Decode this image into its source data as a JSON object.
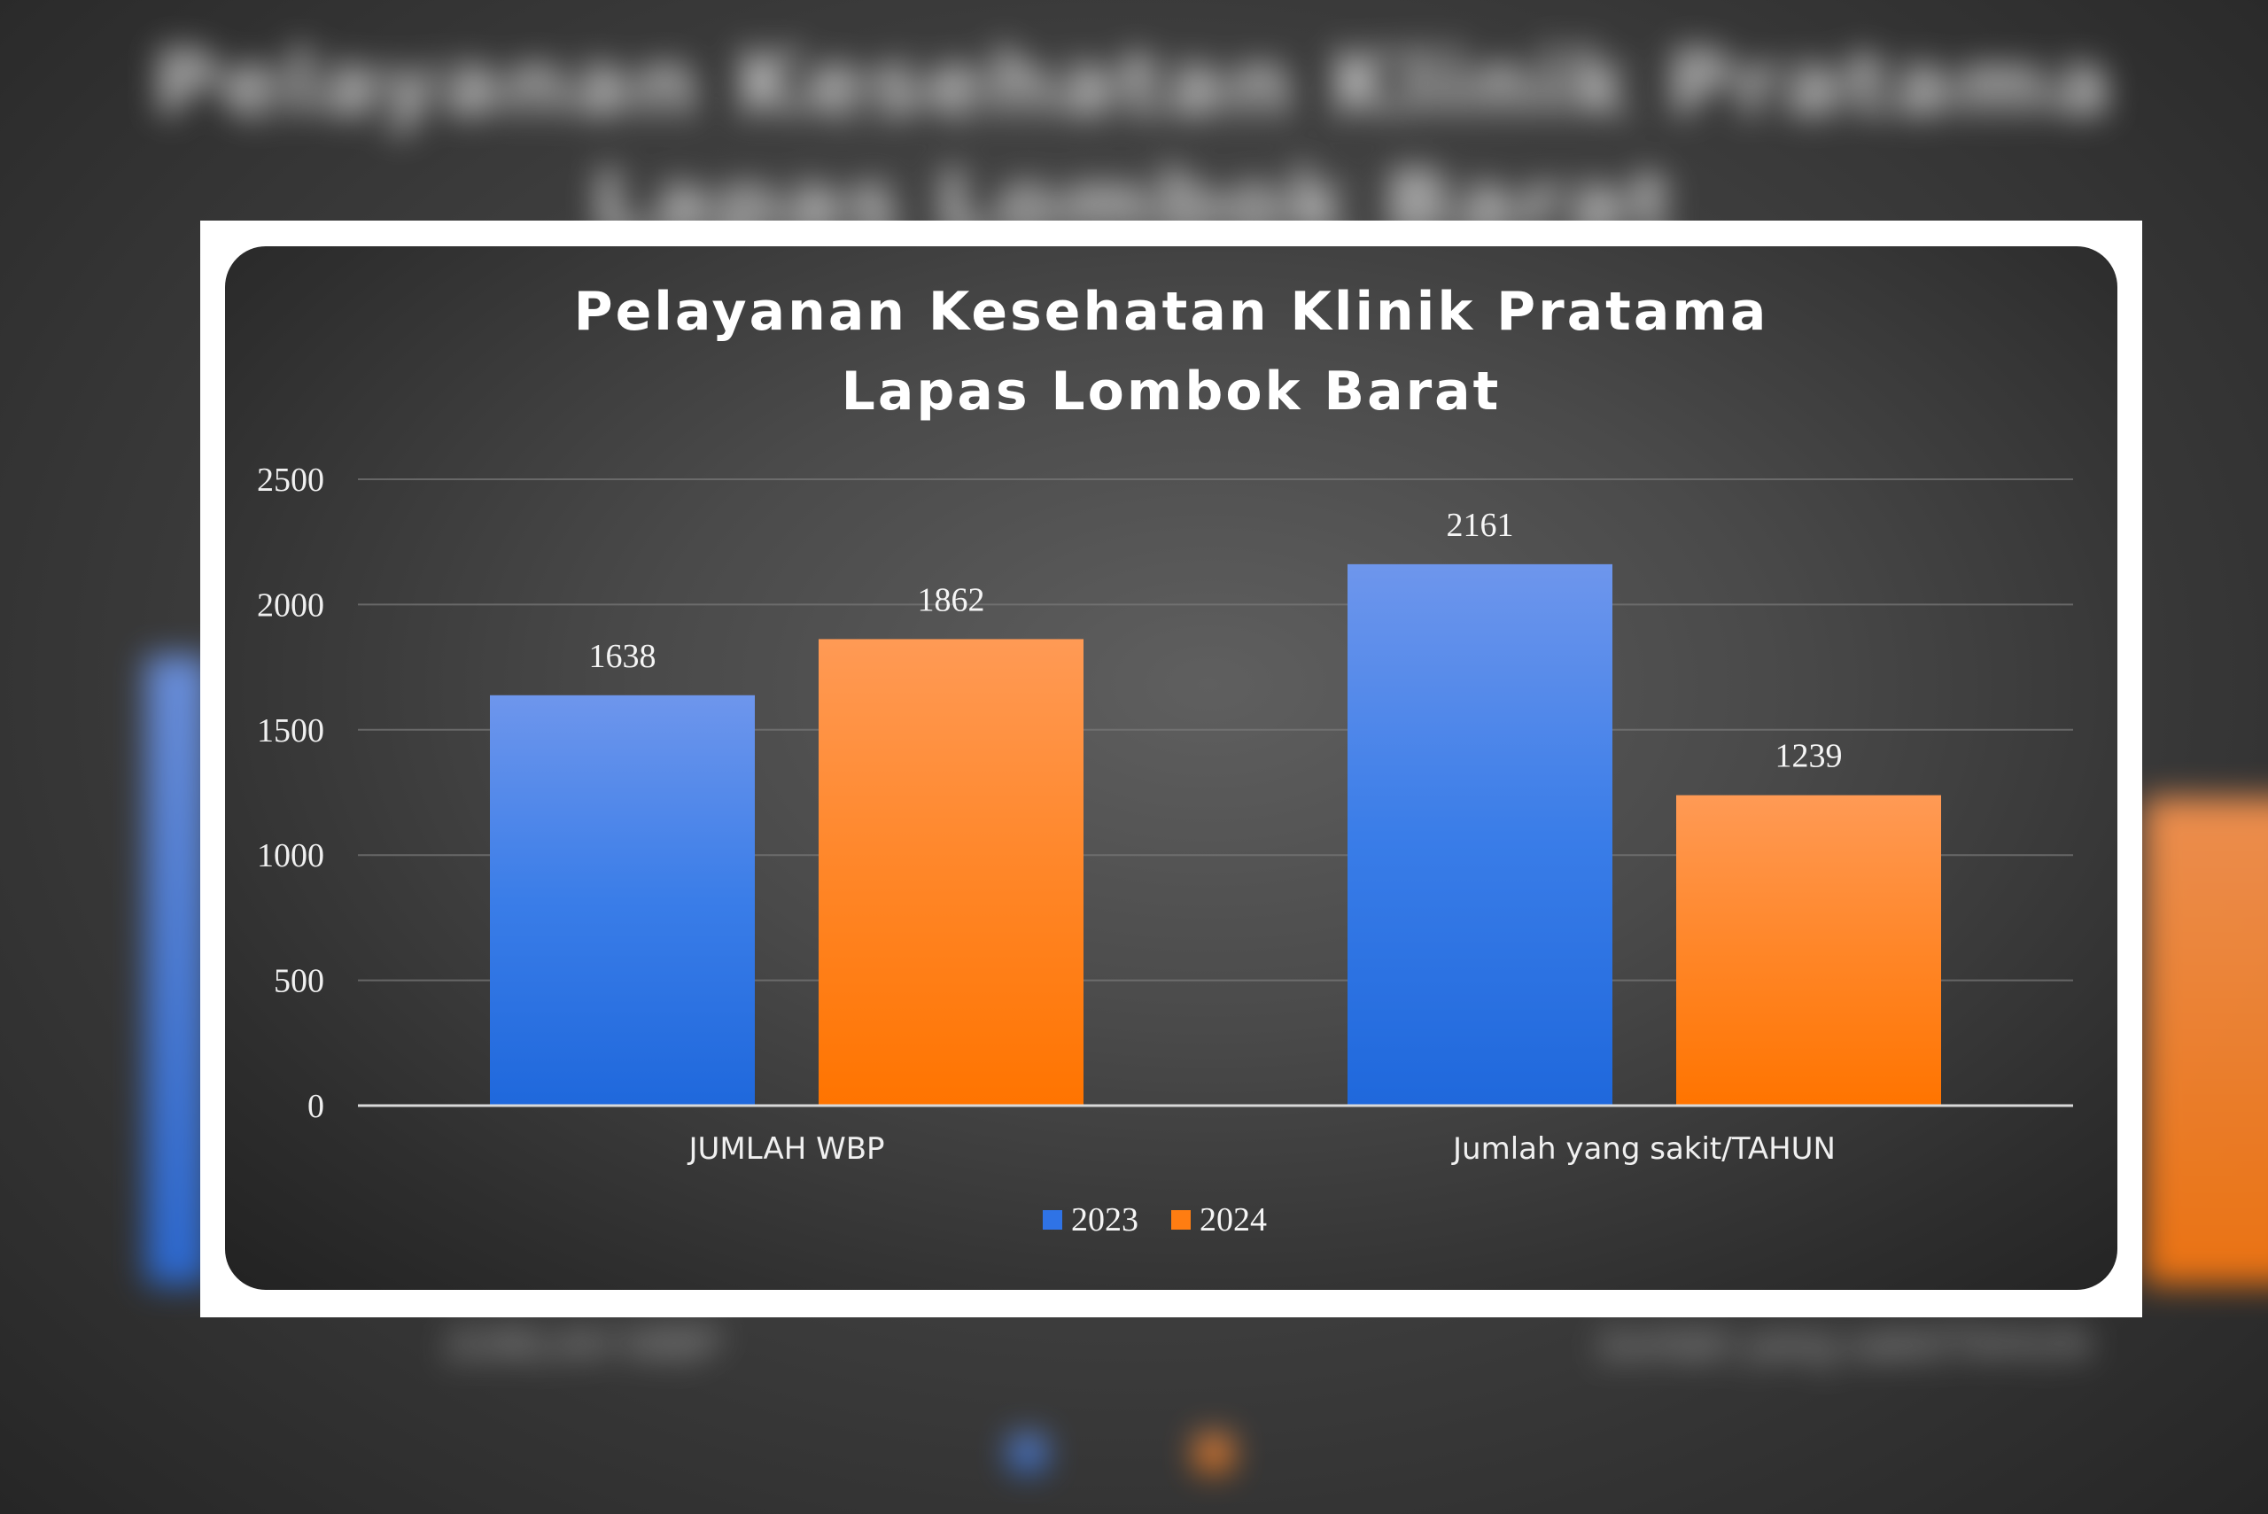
{
  "chart_data": {
    "type": "bar",
    "title": [
      "Pelayanan Kesehatan Klinik Pratama",
      "Lapas Lombok Barat"
    ],
    "categories": [
      "JUMLAH WBP",
      "Jumlah yang sakit/TAHUN"
    ],
    "series": [
      {
        "name": "2023",
        "values": [
          1638,
          2161
        ],
        "color": "#2f73e6"
      },
      {
        "name": "2024",
        "values": [
          1862,
          1239
        ],
        "color": "#ff7d12"
      }
    ],
    "ylim": [
      0,
      2500
    ],
    "yticks": [
      "0",
      "500",
      "1000",
      "1500",
      "2000",
      "2500"
    ],
    "grid": true,
    "legend": "bottom"
  }
}
